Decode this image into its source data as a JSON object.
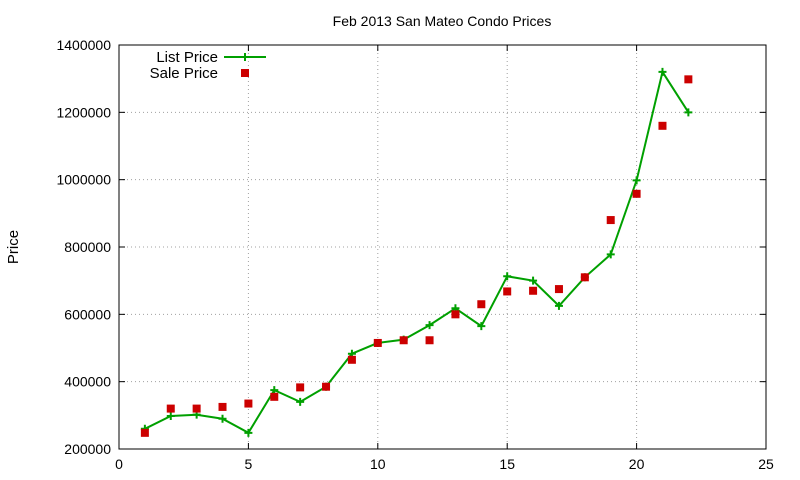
{
  "chart_data": {
    "type": "line",
    "title": "Feb 2013 San Mateo Condo Prices",
    "xlabel": "",
    "ylabel": "Price",
    "xlim": [
      0,
      25
    ],
    "ylim": [
      200000,
      1400000
    ],
    "x_ticks": [
      0,
      5,
      10,
      15,
      20,
      25
    ],
    "x_tick_labels": [
      "0",
      "5",
      "10",
      "15",
      "20",
      "25"
    ],
    "y_ticks": [
      200000,
      400000,
      600000,
      800000,
      1000000,
      1200000,
      1400000
    ],
    "y_tick_labels": [
      "200000",
      "400000",
      "600000",
      "800000",
      "1000000",
      "1200000",
      "1400000"
    ],
    "grid": true,
    "legend_position": "top-left",
    "series": [
      {
        "name": "List Price",
        "style": "line-with-plus-markers",
        "color": "#00a000",
        "x": [
          1,
          2,
          3,
          4,
          5,
          6,
          7,
          8,
          9,
          10,
          11,
          12,
          13,
          14,
          15,
          16,
          17,
          18,
          19,
          20,
          21,
          22
        ],
        "y": [
          260000,
          298000,
          302000,
          290000,
          248000,
          375000,
          340000,
          385000,
          483000,
          515000,
          525000,
          568000,
          618000,
          565000,
          713000,
          700000,
          625000,
          710000,
          778000,
          998000,
          1320000,
          1200000
        ]
      },
      {
        "name": "Sale Price",
        "style": "square-markers",
        "color": "#cc0000",
        "x": [
          1,
          2,
          3,
          4,
          5,
          6,
          7,
          8,
          9,
          10,
          11,
          12,
          13,
          14,
          15,
          16,
          17,
          18,
          19,
          20,
          21,
          22
        ],
        "y": [
          248000,
          320000,
          320000,
          325000,
          335000,
          355000,
          383000,
          385000,
          465000,
          515000,
          523000,
          523000,
          600000,
          630000,
          668000,
          670000,
          675000,
          710000,
          880000,
          958000,
          1160000,
          1298000
        ]
      }
    ]
  }
}
